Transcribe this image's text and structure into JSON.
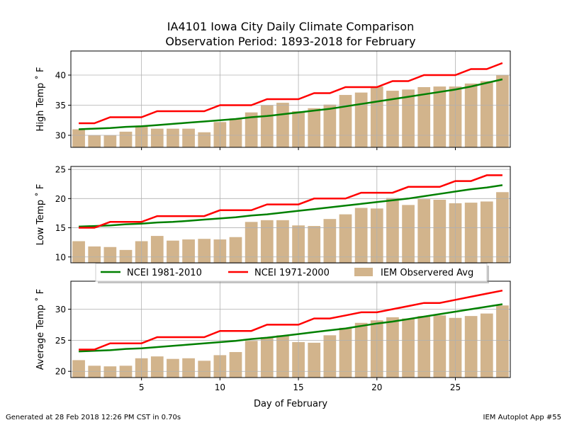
{
  "title_line1": "IA4101 Iowa City Daily Climate Comparison",
  "title_line2": "Observation Period: 1893-2018 for February",
  "footer_left": "Generated at 28 Feb 2018 12:26 PM CST in 0.70s",
  "footer_right": "IEM Autoplot App #55",
  "colors": {
    "ncei_8110": "#008000",
    "ncei_7100": "#ff0000",
    "iem": "#d2b48c",
    "grid": "#b0b0b0"
  },
  "chart_data": {
    "type": "bar",
    "xlabel": "Day of February",
    "x": [
      1,
      2,
      3,
      4,
      5,
      6,
      7,
      8,
      9,
      10,
      11,
      12,
      13,
      14,
      15,
      16,
      17,
      18,
      19,
      20,
      21,
      22,
      23,
      24,
      25,
      26,
      27,
      28
    ],
    "xlim": [
      0.5,
      28.5
    ],
    "xticks": [
      5,
      10,
      15,
      20,
      25
    ],
    "grid": true,
    "legend": {
      "placement": "between-middle-and-bottom",
      "entries": [
        {
          "label": "NCEI 1981-2010",
          "key": "ncei_8110"
        },
        {
          "label": "NCEI 1971-2000",
          "key": "ncei_7100"
        },
        {
          "label": "IEM Observered Avg",
          "key": "iem"
        }
      ]
    },
    "panels": [
      {
        "ylabel": "High Temp $^\\circ$F",
        "ylabel_display": "High Temp ˚ F",
        "ylim": [
          28,
          44
        ],
        "yticks": [
          30,
          35,
          40
        ],
        "series": [
          {
            "name": "IEM Observered Avg",
            "type": "bar",
            "values": [
              31.0,
              30.0,
              30.0,
              30.6,
              31.6,
              31.1,
              31.1,
              31.1,
              30.5,
              32.2,
              32.8,
              33.8,
              35.0,
              35.4,
              34.0,
              34.5,
              35.1,
              36.7,
              37.1,
              38.1,
              37.4,
              37.6,
              38.0,
              38.1,
              38.1,
              38.6,
              39.0,
              40.0
            ]
          },
          {
            "name": "NCEI 1981-2010",
            "type": "line",
            "values": [
              31.0,
              31.1,
              31.2,
              31.4,
              31.5,
              31.7,
              31.9,
              32.1,
              32.3,
              32.5,
              32.7,
              33.0,
              33.2,
              33.5,
              33.8,
              34.1,
              34.4,
              34.8,
              35.2,
              35.6,
              36.0,
              36.4,
              36.8,
              37.2,
              37.6,
              38.1,
              38.7,
              39.3
            ]
          },
          {
            "name": "NCEI 1971-2000",
            "type": "line",
            "values": [
              32,
              32,
              33,
              33,
              33,
              34,
              34,
              34,
              34,
              35,
              35,
              35,
              36,
              36,
              36,
              37,
              37,
              38,
              38,
              38,
              39,
              39,
              40,
              40,
              40,
              41,
              41,
              42
            ]
          }
        ]
      },
      {
        "ylabel": "Low Temp $^\\circ$F",
        "ylabel_display": "Low Temp ˚ F",
        "ylim": [
          9,
          25.5
        ],
        "yticks": [
          10,
          15,
          20,
          25
        ],
        "series": [
          {
            "name": "IEM Observered Avg",
            "type": "bar",
            "values": [
              12.7,
              11.8,
              11.7,
              11.2,
              12.7,
              13.6,
              12.8,
              13.0,
              13.1,
              13.0,
              13.4,
              16.0,
              16.3,
              16.3,
              15.4,
              15.3,
              16.5,
              17.3,
              18.4,
              18.3,
              20.1,
              18.9,
              19.9,
              19.8,
              19.2,
              19.3,
              19.5,
              21.1
            ]
          },
          {
            "name": "NCEI 1981-2010",
            "type": "line",
            "values": [
              15.2,
              15.3,
              15.4,
              15.6,
              15.7,
              15.9,
              16.0,
              16.2,
              16.4,
              16.6,
              16.8,
              17.1,
              17.3,
              17.6,
              17.9,
              18.2,
              18.5,
              18.8,
              19.1,
              19.4,
              19.7,
              20.0,
              20.4,
              20.8,
              21.2,
              21.6,
              21.9,
              22.3
            ]
          },
          {
            "name": "NCEI 1971-2000",
            "type": "line",
            "values": [
              15,
              15,
              16,
              16,
              16,
              17,
              17,
              17,
              17,
              18,
              18,
              18,
              19,
              19,
              19,
              20,
              20,
              20,
              21,
              21,
              21,
              22,
              22,
              22,
              23,
              23,
              24,
              24
            ]
          }
        ]
      },
      {
        "ylabel": "Average Temp $^\\circ$F",
        "ylabel_display": "Average Temp ˚ F",
        "ylim": [
          19,
          34.5
        ],
        "yticks": [
          20,
          25,
          30
        ],
        "series": [
          {
            "name": "IEM Observered Avg",
            "type": "bar",
            "values": [
              21.8,
              20.9,
              20.8,
              20.9,
              22.1,
              22.4,
              22.0,
              22.1,
              21.7,
              22.6,
              23.1,
              24.9,
              25.5,
              25.8,
              24.7,
              24.6,
              25.8,
              27.0,
              27.8,
              28.2,
              28.7,
              28.5,
              28.9,
              29.0,
              28.6,
              28.9,
              29.3,
              30.6
            ]
          },
          {
            "name": "NCEI 1981-2010",
            "type": "line",
            "values": [
              23.2,
              23.3,
              23.4,
              23.6,
              23.7,
              23.9,
              24.1,
              24.3,
              24.5,
              24.7,
              24.9,
              25.2,
              25.4,
              25.7,
              26.0,
              26.3,
              26.6,
              26.9,
              27.3,
              27.7,
              28.0,
              28.4,
              28.8,
              29.2,
              29.6,
              30.0,
              30.4,
              30.8
            ]
          },
          {
            "name": "NCEI 1971-2000",
            "type": "line",
            "values": [
              23.5,
              23.5,
              24.5,
              24.5,
              24.5,
              25.5,
              25.5,
              25.5,
              25.5,
              26.5,
              26.5,
              26.5,
              27.5,
              27.5,
              27.5,
              28.5,
              28.5,
              29.0,
              29.5,
              29.5,
              30.0,
              30.5,
              31.0,
              31.0,
              31.5,
              32.0,
              32.5,
              33.0
            ]
          }
        ]
      }
    ]
  }
}
